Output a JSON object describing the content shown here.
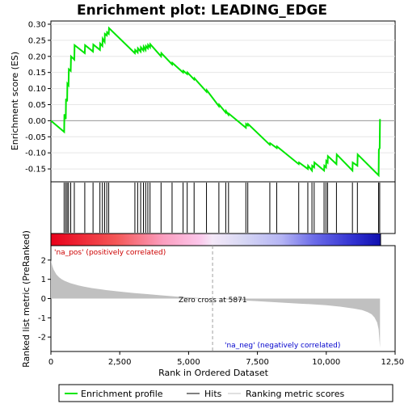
{
  "chart_data": {
    "type": "line",
    "title": "Enrichment plot: LEADING_EDGE",
    "colors": {
      "profile": "#00e600",
      "hits": "#000000",
      "metric_fill": "#c0c0c0",
      "pos_label": "#cc0000",
      "neg_label": "#0000cc"
    },
    "top_panel": {
      "ylabel": "Enrichment score (ES)",
      "ylim": [
        -0.19,
        0.31
      ],
      "yticks": [
        "0.30",
        "0.25",
        "0.20",
        "0.15",
        "0.10",
        "0.05",
        "0.00",
        "-0.05",
        "-0.10",
        "-0.15"
      ],
      "ytick_values": [
        0.3,
        0.25,
        0.2,
        0.15,
        0.1,
        0.05,
        0.0,
        -0.05,
        -0.1,
        -0.15
      ],
      "series": [
        {
          "name": "Enrichment profile",
          "x": [
            0,
            480,
            490,
            540,
            550,
            590,
            600,
            640,
            650,
            720,
            730,
            850,
            860,
            1230,
            1240,
            1530,
            1540,
            1780,
            1790,
            1870,
            1880,
            1950,
            1960,
            2030,
            2040,
            2100,
            2110,
            3050,
            3060,
            3150,
            3160,
            3260,
            3270,
            3360,
            3370,
            3440,
            3450,
            3520,
            3530,
            3600,
            3610,
            4000,
            4010,
            4400,
            4410,
            4800,
            4810,
            4950,
            4960,
            5200,
            5210,
            5650,
            5660,
            6100,
            6110,
            6350,
            6360,
            6450,
            6460,
            7080,
            7090,
            7150,
            7160,
            7950,
            7960,
            8200,
            8210,
            9000,
            9010,
            9330,
            9340,
            9480,
            9490,
            9560,
            9570,
            9920,
            9930,
            9990,
            10000,
            10050,
            10060,
            10370,
            10380,
            10950,
            10960,
            11130,
            11140,
            11900,
            11910,
            11940,
            11950
          ],
          "values": [
            0.0,
            -0.035,
            0.02,
            0.005,
            0.068,
            0.06,
            0.115,
            0.11,
            0.16,
            0.155,
            0.2,
            0.19,
            0.235,
            0.21,
            0.235,
            0.215,
            0.237,
            0.22,
            0.24,
            0.232,
            0.255,
            0.245,
            0.27,
            0.265,
            0.275,
            0.27,
            0.288,
            0.21,
            0.22,
            0.212,
            0.225,
            0.215,
            0.228,
            0.218,
            0.23,
            0.22,
            0.232,
            0.225,
            0.236,
            0.228,
            0.238,
            0.2,
            0.21,
            0.175,
            0.18,
            0.15,
            0.155,
            0.145,
            0.15,
            0.128,
            0.132,
            0.09,
            0.095,
            0.045,
            0.05,
            0.025,
            0.03,
            0.018,
            0.022,
            -0.022,
            -0.01,
            -0.015,
            -0.01,
            -0.075,
            -0.07,
            -0.085,
            -0.08,
            -0.135,
            -0.13,
            -0.15,
            -0.14,
            -0.155,
            -0.14,
            -0.145,
            -0.13,
            -0.155,
            -0.14,
            -0.145,
            -0.125,
            -0.13,
            -0.11,
            -0.135,
            -0.105,
            -0.155,
            -0.13,
            -0.14,
            -0.105,
            -0.17,
            -0.09,
            -0.085,
            0.005
          ]
        }
      ],
      "hits_x": [
        480,
        540,
        590,
        640,
        720,
        850,
        1230,
        1530,
        1780,
        1870,
        1950,
        2030,
        2100,
        3050,
        3150,
        3260,
        3360,
        3440,
        3520,
        3600,
        4000,
        4400,
        4800,
        4950,
        5200,
        5650,
        6100,
        6350,
        6450,
        7080,
        7150,
        7950,
        8200,
        9000,
        9330,
        9480,
        9560,
        9920,
        9990,
        10050,
        10370,
        10950,
        11130,
        11900,
        11940
      ]
    },
    "bottom_panel": {
      "ylabel": "Ranked list metric (PreRanked)",
      "ylim": [
        -2.75,
        2.75
      ],
      "yticks": [
        "2",
        "1",
        "0",
        "-1",
        "-2"
      ],
      "ytick_values": [
        2,
        1,
        0,
        -1,
        -2
      ],
      "metric_x": [
        0,
        50,
        100,
        200,
        300,
        400,
        500,
        600,
        700,
        800,
        1000,
        1200,
        1500,
        2000,
        2500,
        3000,
        3500,
        4000,
        4500,
        5000,
        5500,
        5871,
        6500,
        7000,
        7500,
        8000,
        8500,
        9000,
        9500,
        10000,
        10500,
        11000,
        11300,
        11500,
        11650,
        11750,
        11850,
        11900,
        11950
      ],
      "metric_values": [
        2.0,
        1.7,
        1.5,
        1.25,
        1.1,
        1.0,
        0.92,
        0.86,
        0.8,
        0.76,
        0.68,
        0.62,
        0.54,
        0.44,
        0.36,
        0.29,
        0.23,
        0.17,
        0.11,
        0.06,
        0.02,
        0.0,
        -0.05,
        -0.1,
        -0.14,
        -0.18,
        -0.22,
        -0.26,
        -0.3,
        -0.35,
        -0.42,
        -0.52,
        -0.6,
        -0.7,
        -0.82,
        -0.98,
        -1.25,
        -1.6,
        -2.55
      ],
      "zero_cross_label": "Zero cross at 5871",
      "zero_cross_x": 5871,
      "pos_label": "'na_pos' (positively correlated)",
      "neg_label": "'na_neg' (negatively correlated)"
    },
    "xlabel": "Rank in Ordered Dataset",
    "xlim": [
      0,
      12500
    ],
    "xticks": [
      "0",
      "2,500",
      "5,000",
      "7,500",
      "10,000",
      "12,500"
    ],
    "xtick_values": [
      0,
      2500,
      5000,
      7500,
      10000,
      12500
    ],
    "n_genes": 11950,
    "legend": [
      "Enrichment profile",
      "Hits",
      "Ranking metric scores"
    ]
  }
}
